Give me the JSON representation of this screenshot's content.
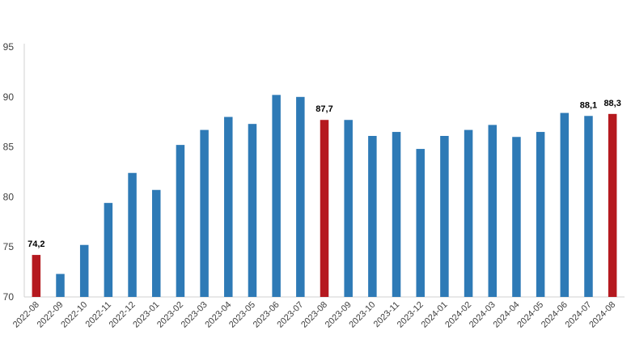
{
  "chart_data": {
    "type": "bar",
    "title": "",
    "xlabel": "",
    "ylabel": "",
    "ylim": [
      70,
      95
    ],
    "yticks": [
      70,
      75,
      80,
      85,
      90,
      95
    ],
    "grid": false,
    "colors": {
      "default": "#2e7ab6",
      "highlight": "#b5191f",
      "axis": "#d0d0d0",
      "text": "#404040"
    },
    "categories": [
      "2022-08",
      "2022-09",
      "2022-10",
      "2022-11",
      "2022-12",
      "2023-01",
      "2023-02",
      "2023-03",
      "2023-04",
      "2023-05",
      "2023-06",
      "2023-07",
      "2023-08",
      "2023-09",
      "2023-10",
      "2023-11",
      "2023-12",
      "2024-01",
      "2024-02",
      "2024-03",
      "2024-04",
      "2024-05",
      "2024-06",
      "2024-07",
      "2024-08"
    ],
    "values": [
      74.2,
      72.3,
      75.2,
      79.4,
      82.4,
      80.7,
      85.2,
      86.7,
      88.0,
      87.3,
      90.2,
      90.0,
      87.7,
      87.7,
      86.1,
      86.5,
      84.8,
      86.1,
      86.7,
      87.2,
      86.0,
      86.5,
      88.4,
      88.1,
      88.3
    ],
    "highlighted": [
      "2022-08",
      "2023-08",
      "2024-08"
    ],
    "data_labels": [
      {
        "category": "2022-08",
        "text": "74,2"
      },
      {
        "category": "2023-08",
        "text": "87,7"
      },
      {
        "category": "2024-07",
        "text": "88,1"
      },
      {
        "category": "2024-08",
        "text": "88,3"
      }
    ]
  }
}
